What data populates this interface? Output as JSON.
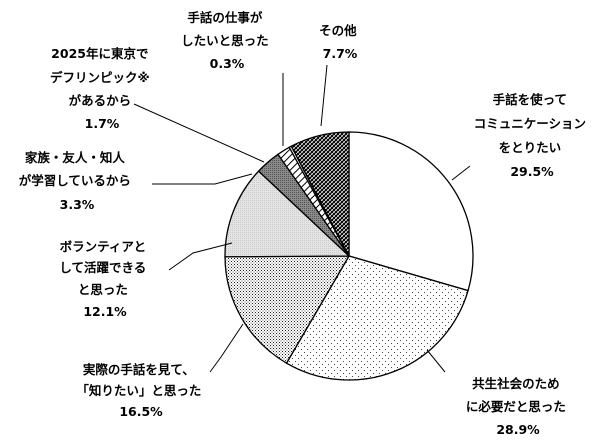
{
  "chart_data": {
    "type": "pie",
    "start": "top",
    "direction": "clockwise",
    "slices": [
      {
        "lines": [
          "手話を使って",
          "コミュニケーション",
          "をとりたい"
        ],
        "pct_label": "29.5%",
        "value": 29.5,
        "pattern": "white"
      },
      {
        "lines": [
          "共生社会のため",
          "に必要だと思った"
        ],
        "pct_label": "28.9%",
        "value": 28.9,
        "pattern": "sparse-dots"
      },
      {
        "lines": [
          "実際の手話を見て、",
          "「知りたい」と思った"
        ],
        "pct_label": "16.5%",
        "value": 16.5,
        "pattern": "dense-dots"
      },
      {
        "lines": [
          "ボランティアと",
          "して活躍できる",
          "と思った"
        ],
        "pct_label": "12.1%",
        "value": 12.1,
        "pattern": "light-gray"
      },
      {
        "lines": [
          "家族・友人・知人",
          "が学習しているから"
        ],
        "pct_label": "3.3%",
        "value": 3.3,
        "pattern": "dark-gray"
      },
      {
        "lines": [
          "2025年に東京で",
          "デフリンピック※",
          "があるから"
        ],
        "pct_label": "1.7%",
        "value": 1.7,
        "pattern": "diagonal"
      },
      {
        "lines": [
          "手話の仕事が",
          "したいと思った"
        ],
        "pct_label": "0.3%",
        "value": 0.3,
        "pattern": "white"
      },
      {
        "lines": [
          "その他"
        ],
        "pct_label": "7.7%",
        "value": 7.7,
        "pattern": "crosshatch"
      }
    ]
  }
}
